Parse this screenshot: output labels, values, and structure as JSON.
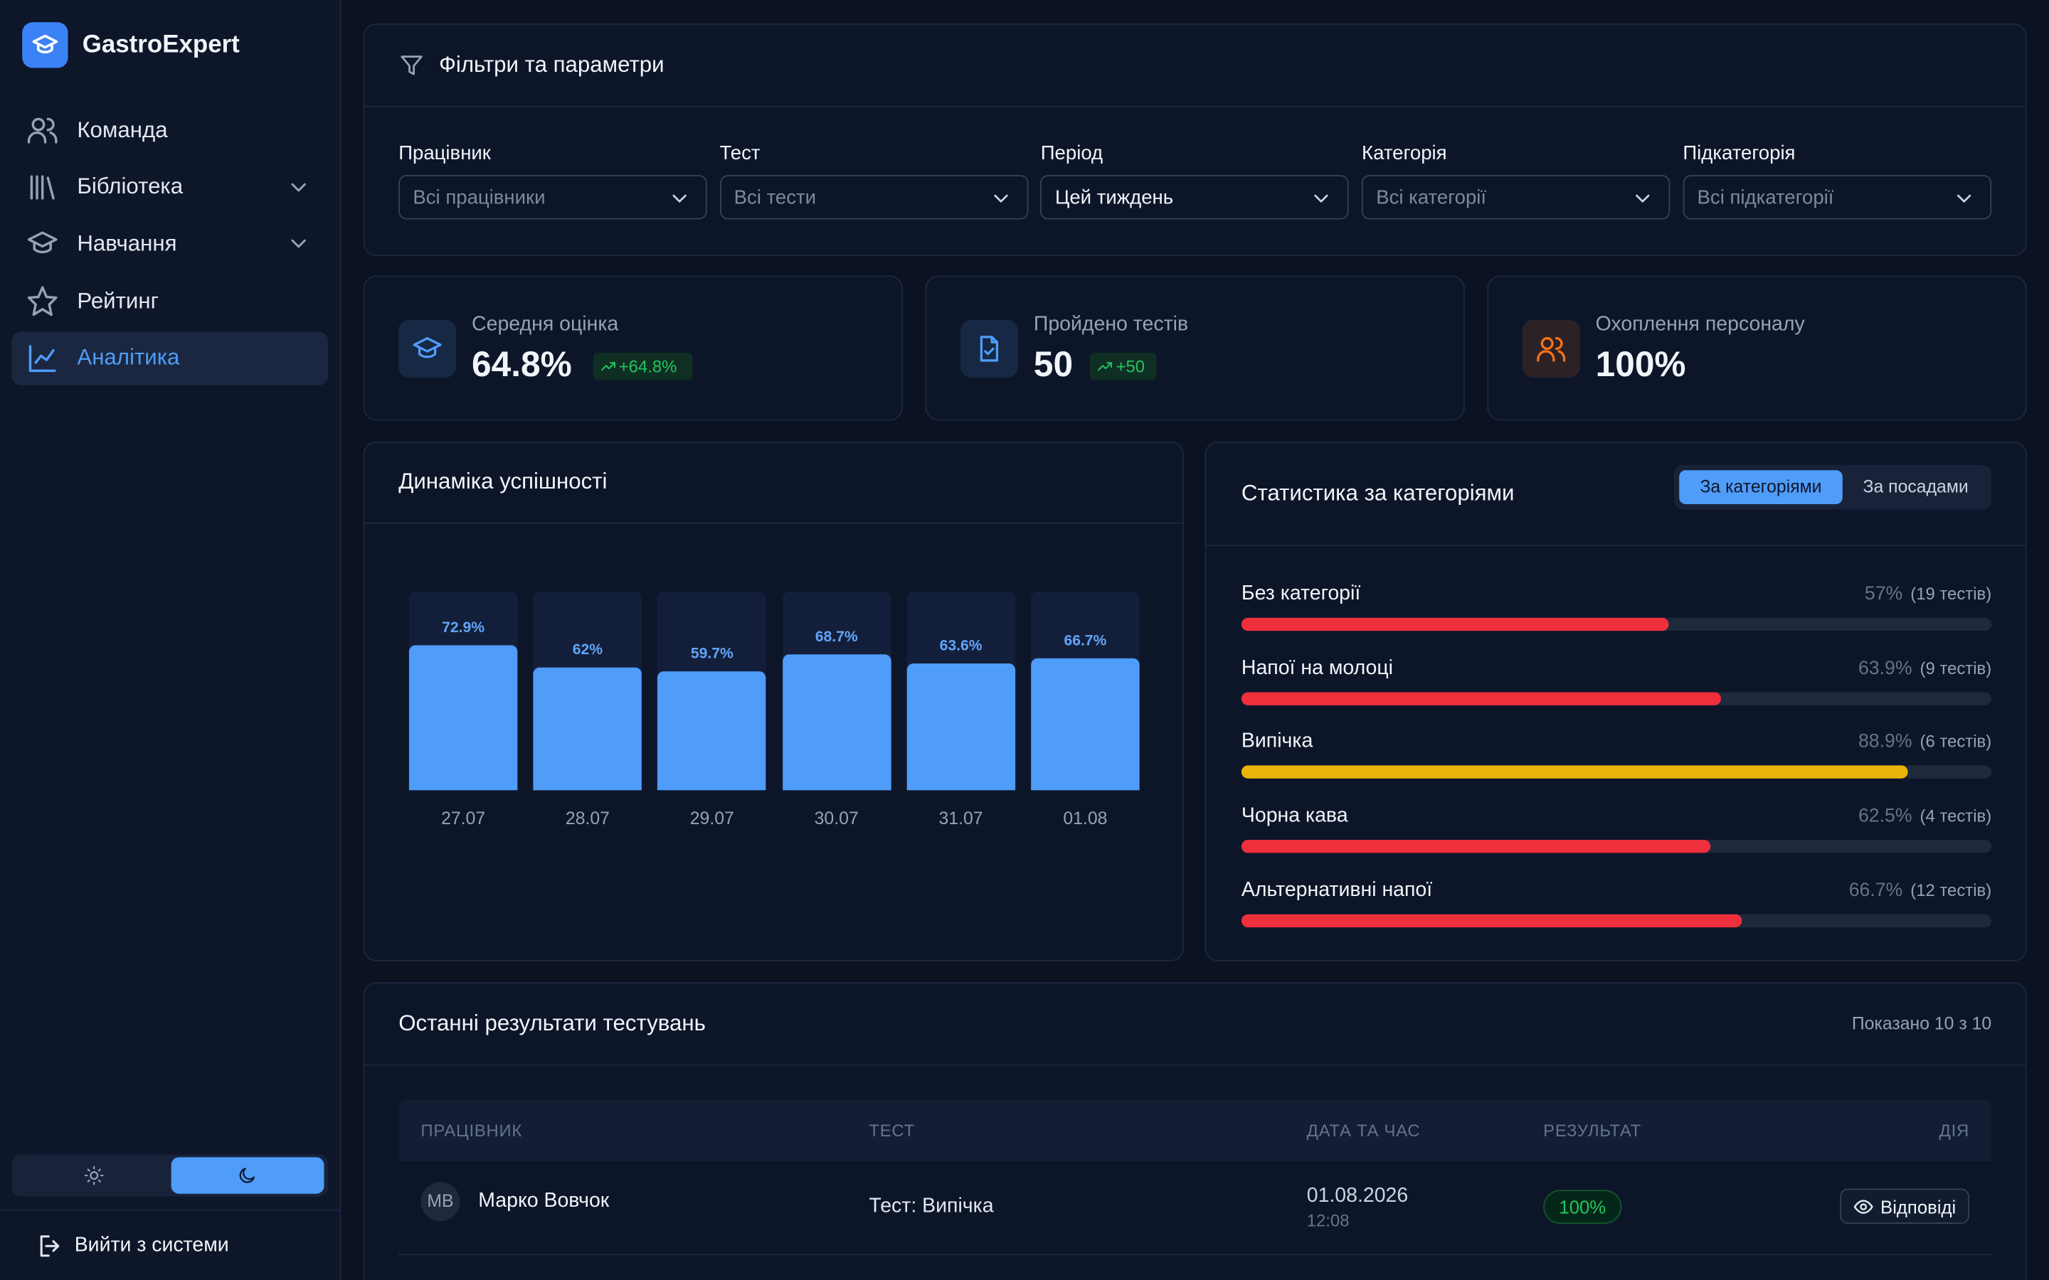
{
  "app": {
    "name": "GastroExpert"
  },
  "nav": [
    {
      "label": "Команда",
      "icon": "users"
    },
    {
      "label": "Бібліотека",
      "icon": "library",
      "expandable": true
    },
    {
      "label": "Навчання",
      "icon": "cap",
      "expandable": true
    },
    {
      "label": "Рейтинг",
      "icon": "star"
    },
    {
      "label": "Аналітика",
      "icon": "chart",
      "active": true
    }
  ],
  "logout": "Вийти з системи",
  "filters": {
    "title": "Фільтри та параметри",
    "fields": [
      {
        "label": "Працівник",
        "value": "Всі працівники"
      },
      {
        "label": "Тест",
        "value": "Всі тести"
      },
      {
        "label": "Період",
        "value": "Цей тиждень",
        "selected": true
      },
      {
        "label": "Категорія",
        "value": "Всі категорії"
      },
      {
        "label": "Підкатегорія",
        "value": "Всі підкатегорії"
      }
    ]
  },
  "stats": [
    {
      "label": "Середня оцінка",
      "value": "64.8%",
      "change": "+64.8%",
      "icon": "cap",
      "color": "#4f9cf9"
    },
    {
      "label": "Пройдено тестів",
      "value": "50",
      "change": "+50",
      "icon": "file",
      "color": "#4f9cf9"
    },
    {
      "label": "Охоплення персоналу",
      "value": "100%",
      "icon": "users",
      "color": "#f97316"
    }
  ],
  "chart_data": {
    "type": "bar",
    "title": "Динаміка успішності",
    "categories": [
      "27.07",
      "28.07",
      "29.07",
      "30.07",
      "31.07",
      "01.08"
    ],
    "values": [
      72.9,
      62,
      59.7,
      68.7,
      63.6,
      66.7
    ],
    "value_labels": [
      "72.9%",
      "62%",
      "59.7%",
      "68.7%",
      "63.6%",
      "66.7%"
    ],
    "color": "#4f9cf9",
    "ylim": [
      0,
      100
    ]
  },
  "category_stats": {
    "title": "Статистика за категоріями",
    "tabs": [
      "За категоріями",
      "За посадами"
    ],
    "xlim": [
      0,
      100
    ],
    "items": [
      {
        "name": "Без категорії",
        "value": 57,
        "label": "57%",
        "count": "(19 тестів)",
        "color": "#ef2f3c"
      },
      {
        "name": "Напої на молоці",
        "value": 63.9,
        "label": "63.9%",
        "count": "(9 тестів)",
        "color": "#ef2f3c"
      },
      {
        "name": "Випічка",
        "value": 88.9,
        "label": "88.9%",
        "count": "(6 тестів)",
        "color": "#eab308"
      },
      {
        "name": "Чорна кава",
        "value": 62.5,
        "label": "62.5%",
        "count": "(4 тестів)",
        "color": "#ef2f3c"
      },
      {
        "name": "Альтернативні напої",
        "value": 66.7,
        "label": "66.7%",
        "count": "(12 тестів)",
        "color": "#ef2f3c"
      }
    ]
  },
  "results": {
    "title": "Останні результати тестувань",
    "shown": "Показано 10 з 10",
    "columns": [
      "ПРАЦІВНИК",
      "ТЕСТ",
      "ДАТА ТА ЧАС",
      "РЕЗУЛЬТАТ",
      "ДІЯ"
    ],
    "rows": [
      {
        "initials": "МВ",
        "name": "Марко Вовчок",
        "test": "Тест: Випічка",
        "date": "01.08.2026",
        "time": "12:08",
        "result": "100%",
        "action": "Відповіді"
      }
    ]
  }
}
